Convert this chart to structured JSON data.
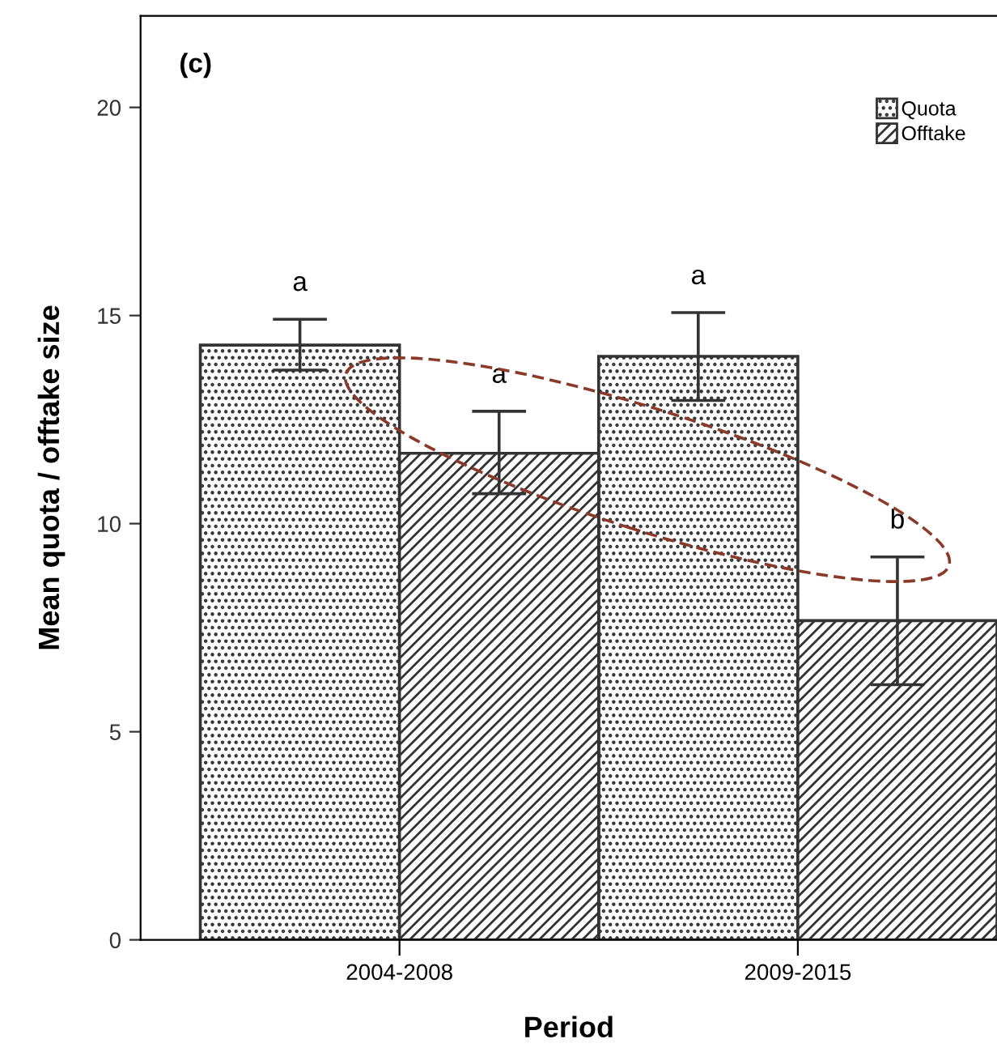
{
  "chart_data": {
    "type": "bar",
    "xlabel": "Period",
    "ylabel": "Mean quota / offtake size",
    "categories": [
      "2004-2008",
      "2009-2015"
    ],
    "series": [
      {
        "name": "Quota",
        "color": "#333333",
        "values": [
          14.29,
          14.02
        ],
        "errors": [
          [
            13.69,
            14.91
          ],
          [
            12.96,
            15.07
          ]
        ]
      },
      {
        "name": "Offtake",
        "color": "#333333",
        "values": [
          11.69,
          7.67
        ],
        "errors": [
          [
            10.72,
            12.7
          ],
          [
            6.13,
            9.2
          ]
        ]
      }
    ],
    "annotations": [
      "(c)",
      "a",
      "a",
      "a",
      "b"
    ],
    "ylim": [
      0,
      22.2
    ],
    "yticks": [
      0,
      5,
      10,
      15,
      20
    ],
    "grid": false,
    "legend": "top right"
  }
}
